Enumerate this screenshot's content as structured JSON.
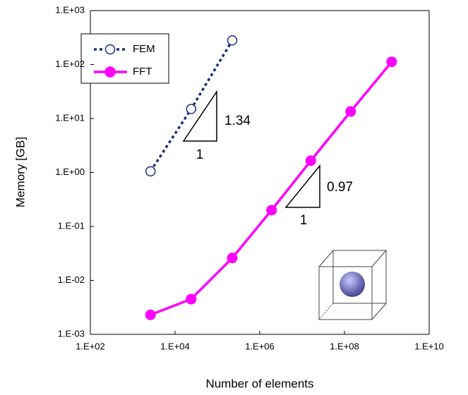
{
  "chart_data": {
    "type": "line",
    "x_label": "Number of elements",
    "y_label": "Memory [GB]",
    "log_x": true,
    "log_y": true,
    "legend": "upper left",
    "xlim": [
      100,
      10000000000
    ],
    "ylim": [
      0.001,
      1000
    ],
    "xticks": [
      {
        "value": 100,
        "label": "1.E+02"
      },
      {
        "value": 10000,
        "label": "1.E+04"
      },
      {
        "value": 1000000,
        "label": "1.E+06"
      },
      {
        "value": 100000000,
        "label": "1.E+08"
      },
      {
        "value": 10000000000,
        "label": "1.E+10"
      }
    ],
    "yticks": [
      {
        "value": 0.001,
        "label": "1.E-03"
      },
      {
        "value": 0.01,
        "label": "1.E-02"
      },
      {
        "value": 0.1,
        "label": "1.E-01"
      },
      {
        "value": 1,
        "label": "1.E+00"
      },
      {
        "value": 10,
        "label": "1.E+01"
      },
      {
        "value": 100,
        "label": "1.E+02"
      },
      {
        "value": 1000,
        "label": "1.E+03"
      }
    ],
    "series": [
      {
        "name": "FEM",
        "color": "#1f2f7a",
        "x": [
          2630,
          24000,
          224000
        ],
        "values": [
          1.05,
          15,
          280
        ]
      },
      {
        "name": "FFT",
        "color": "#ff00ff",
        "x": [
          2630,
          24000,
          224000,
          1900000,
          16000000,
          140000000,
          1300000000
        ],
        "values": [
          0.0023,
          0.0045,
          0.026,
          0.2,
          1.65,
          13.5,
          112
        ]
      }
    ],
    "annotations": [
      "1.34",
      "1",
      "0.97",
      "1"
    ]
  }
}
